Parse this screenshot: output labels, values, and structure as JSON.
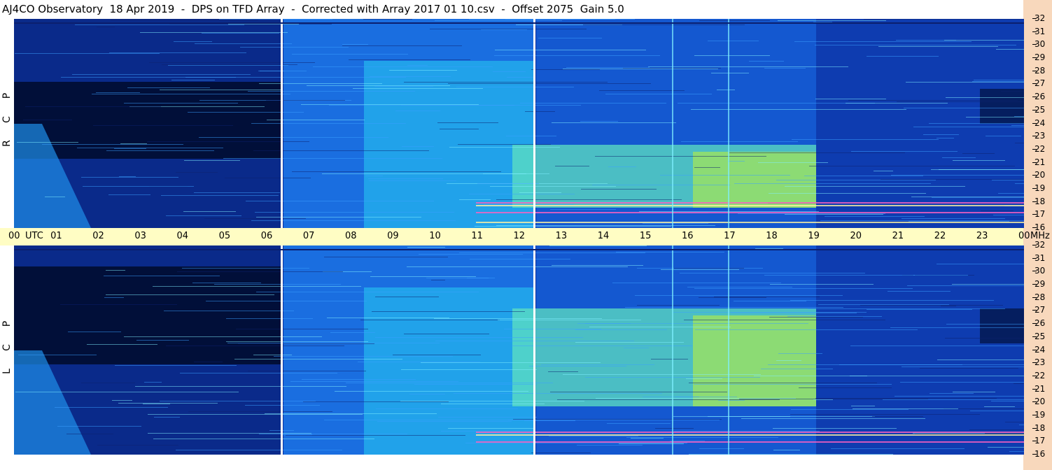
{
  "title": "AJ4CO Observatory  18 Apr 2019  -  DPS on TFD Array  -  Corrected with Array 2017 01 10.csv  -  Offset 2075  Gain 5.0",
  "panels": [
    {
      "id": "rcp",
      "letters": [
        "R",
        "C",
        "P"
      ]
    },
    {
      "id": "lcp",
      "letters": [
        "L",
        "C",
        "P"
      ]
    }
  ],
  "time_axis": {
    "utc_label": "UTC",
    "end_label": "00",
    "unit_label": "MHz",
    "hours": [
      "00",
      "01",
      "02",
      "03",
      "04",
      "05",
      "06",
      "07",
      "08",
      "09",
      "10",
      "11",
      "12",
      "13",
      "14",
      "15",
      "16",
      "17",
      "18",
      "19",
      "20",
      "21",
      "22",
      "23"
    ]
  },
  "freq_axis": {
    "labels": [
      "32",
      "31",
      "30",
      "29",
      "28",
      "27",
      "26",
      "25",
      "24",
      "23",
      "22",
      "21",
      "20",
      "19",
      "18",
      "17",
      "16"
    ]
  },
  "colors": {
    "background_dark": "#001a5c",
    "deep_blue": "#0a2a9a",
    "mid_blue": "#1a5fd8",
    "cyan": "#1ec8f0",
    "green_yellow": "#b8ee40",
    "axis_band": "#fffdc4",
    "freq_strip": "#f8d8bc"
  }
}
